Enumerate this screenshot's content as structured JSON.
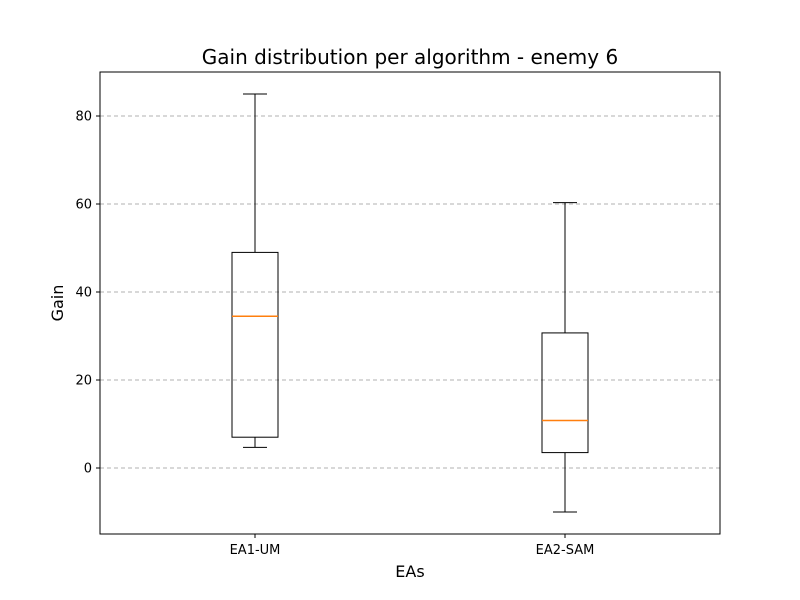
{
  "chart_data": {
    "type": "box",
    "title": "Gain distribution per algorithm - enemy 6",
    "xlabel": "EAs",
    "ylabel": "Gain",
    "categories": [
      "EA1-UM",
      "EA2-SAM"
    ],
    "boxes": [
      {
        "name": "EA1-UM",
        "whisker_low": 4.7,
        "q1": 7.0,
        "median": 34.5,
        "q3": 49.0,
        "whisker_high": 85.0
      },
      {
        "name": "EA2-SAM",
        "whisker_low": -10.0,
        "q1": 3.5,
        "median": 10.8,
        "q3": 30.7,
        "whisker_high": 60.3
      }
    ],
    "yticks": [
      0,
      20,
      40,
      60,
      80
    ],
    "ylim": [
      -15,
      90
    ],
    "grid": "y-dashed",
    "colors": {
      "median": "#ff7f0e",
      "box": "#000000",
      "grid": "#b0b0b0"
    }
  }
}
